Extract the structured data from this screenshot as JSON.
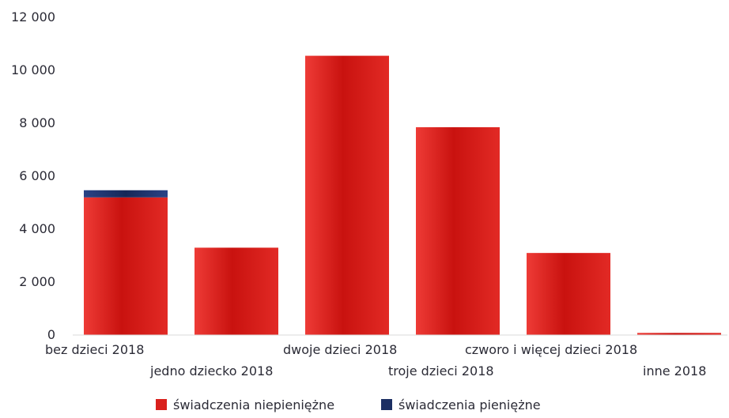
{
  "chart_data": {
    "type": "bar",
    "stacked": true,
    "categories": [
      "bez dzieci 2018",
      "jedno dziecko 2018",
      "dwoje dzieci 2018",
      "troje dzieci 2018",
      "czworo i więcej dzieci 2018",
      "inne 2018"
    ],
    "series": [
      {
        "name": "świadczenia niepieniężne",
        "color": "#d9201c",
        "values": [
          5200,
          3300,
          10550,
          7850,
          3100,
          80
        ]
      },
      {
        "name": "świadczenia pieniężne",
        "color": "#1c2f63",
        "values": [
          270,
          0,
          0,
          0,
          0,
          0
        ]
      }
    ],
    "yticks": [
      "0",
      "2 000",
      "4 000",
      "6 000",
      "8 000",
      "10 000",
      "12 000"
    ],
    "ylim": [
      0,
      12000
    ],
    "grid": false,
    "legend_position": "bottom"
  }
}
